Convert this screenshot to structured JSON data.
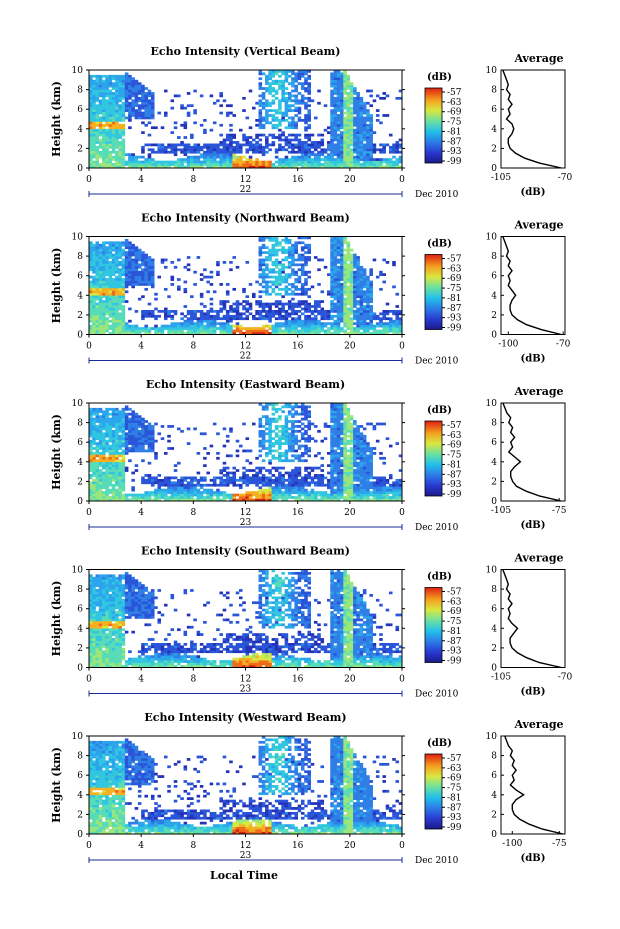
{
  "figure": {
    "xlabel": "Local Time",
    "day_suffix": "Dec 2010",
    "ylabel": "Height (km)",
    "cbar_label": "(dB)",
    "avg_title": "Average",
    "avg_xlabel": "(dB)"
  },
  "chart_data": [
    {
      "type": "heatmap",
      "title": "Echo Intensity (Vertical Beam)",
      "xlabel": "Local Time",
      "ylabel": "Height (km)",
      "x_ticks": [
        "0",
        "4",
        "8",
        "12",
        "16",
        "20",
        "0"
      ],
      "date_label": "22",
      "y_ticks": [
        "0",
        "2",
        "4",
        "6",
        "8",
        "10"
      ],
      "xlim": [
        0,
        24
      ],
      "ylim": [
        0,
        10
      ],
      "colorbar": {
        "label": "(dB)",
        "ticks": [
          "-57",
          "-63",
          "-69",
          "-75",
          "-81",
          "-87",
          "-93",
          "-99"
        ]
      },
      "average_profile": {
        "title": "Average",
        "xlabel": "(dB)",
        "x_ticks": [
          "-105",
          "-70"
        ],
        "xlim": [
          -105,
          -70
        ],
        "height": [
          0,
          0.5,
          1,
          1.5,
          2,
          2.5,
          3,
          3.5,
          4,
          4.5,
          5,
          5.5,
          6,
          6.5,
          7,
          7.5,
          8,
          8.5,
          9,
          9.5,
          10
        ],
        "value": [
          -72,
          -84,
          -92,
          -97,
          -100,
          -101,
          -101,
          -99,
          -98,
          -99,
          -102,
          -100,
          -101,
          -99,
          -101,
          -100,
          -102,
          -101,
          -102,
          -103,
          -104
        ]
      }
    },
    {
      "type": "heatmap",
      "title": "Echo Intensity (Northward Beam)",
      "xlabel": "Local Time",
      "ylabel": "Height (km)",
      "x_ticks": [
        "0",
        "4",
        "8",
        "12",
        "16",
        "20",
        "0"
      ],
      "date_label": "22",
      "y_ticks": [
        "0",
        "2",
        "4",
        "6",
        "8",
        "10"
      ],
      "xlim": [
        0,
        24
      ],
      "ylim": [
        0,
        10
      ],
      "colorbar": {
        "label": "(dB)",
        "ticks": [
          "-57",
          "-63",
          "-69",
          "-75",
          "-81",
          "-87",
          "-93",
          "-99"
        ]
      },
      "average_profile": {
        "title": "Average",
        "xlabel": "(dB)",
        "x_ticks": [
          "-100",
          "-70"
        ],
        "xlim": [
          -104,
          -69
        ],
        "height": [
          0,
          0.5,
          1,
          1.5,
          2,
          2.5,
          3,
          3.5,
          4,
          4.5,
          5,
          5.5,
          6,
          6.5,
          7,
          7.5,
          8,
          8.5,
          9,
          9.5,
          10
        ],
        "value": [
          -71,
          -82,
          -90,
          -95,
          -98,
          -99,
          -99,
          -98,
          -96,
          -98,
          -100,
          -99,
          -100,
          -98,
          -100,
          -99,
          -101,
          -100,
          -101,
          -102,
          -103
        ]
      }
    },
    {
      "type": "heatmap",
      "title": "Echo Intensity (Eastward Beam)",
      "xlabel": "Local Time",
      "ylabel": "Height (km)",
      "x_ticks": [
        "0",
        "4",
        "8",
        "12",
        "16",
        "20",
        "0"
      ],
      "date_label": "23",
      "y_ticks": [
        "0",
        "2",
        "4",
        "6",
        "8",
        "10"
      ],
      "xlim": [
        0,
        24
      ],
      "ylim": [
        0,
        10
      ],
      "colorbar": {
        "label": "(dB)",
        "ticks": [
          "-57",
          "-63",
          "-69",
          "-75",
          "-81",
          "-87",
          "-93",
          "-99"
        ]
      },
      "average_profile": {
        "title": "Average",
        "xlabel": "(dB)",
        "x_ticks": [
          "-105",
          "-75"
        ],
        "xlim": [
          -105,
          -72
        ],
        "height": [
          0,
          0.5,
          1,
          1.5,
          2,
          2.5,
          3,
          3.5,
          4,
          4.5,
          5,
          5.5,
          6,
          6.5,
          7,
          7.5,
          8,
          8.5,
          9,
          9.5,
          10
        ],
        "value": [
          -74,
          -85,
          -92,
          -97,
          -99,
          -100,
          -100,
          -98,
          -95,
          -98,
          -101,
          -99,
          -100,
          -98,
          -100,
          -99,
          -101,
          -100,
          -102,
          -103,
          -104
        ]
      }
    },
    {
      "type": "heatmap",
      "title": "Echo Intensity (Southward Beam)",
      "xlabel": "Local Time",
      "ylabel": "Height (km)",
      "x_ticks": [
        "0",
        "4",
        "8",
        "12",
        "16",
        "20",
        "0"
      ],
      "date_label": "23",
      "y_ticks": [
        "0",
        "2",
        "4",
        "6",
        "8",
        "10"
      ],
      "xlim": [
        0,
        24
      ],
      "ylim": [
        0,
        10
      ],
      "colorbar": {
        "label": "(dB)",
        "ticks": [
          "-57",
          "-63",
          "-69",
          "-75",
          "-81",
          "-87",
          "-93",
          "-99"
        ]
      },
      "average_profile": {
        "title": "Average",
        "xlabel": "(dB)",
        "x_ticks": [
          "-105",
          "-70"
        ],
        "xlim": [
          -105,
          -70
        ],
        "height": [
          0,
          0.5,
          1,
          1.5,
          2,
          2.5,
          3,
          3.5,
          4,
          4.5,
          5,
          5.5,
          6,
          6.5,
          7,
          7.5,
          8,
          8.5,
          9,
          9.5,
          10
        ],
        "value": [
          -72,
          -84,
          -91,
          -96,
          -99,
          -100,
          -100,
          -98,
          -96,
          -99,
          -101,
          -100,
          -101,
          -99,
          -101,
          -100,
          -102,
          -101,
          -102,
          -103,
          -104
        ]
      }
    },
    {
      "type": "heatmap",
      "title": "Echo Intensity (Westward Beam)",
      "xlabel": "Local Time",
      "ylabel": "Height (km)",
      "x_ticks": [
        "0",
        "4",
        "8",
        "12",
        "16",
        "20",
        "0"
      ],
      "date_label": "23",
      "y_ticks": [
        "0",
        "2",
        "4",
        "6",
        "8",
        "10"
      ],
      "xlim": [
        0,
        24
      ],
      "ylim": [
        0,
        10
      ],
      "colorbar": {
        "label": "(dB)",
        "ticks": [
          "-57",
          "-63",
          "-69",
          "-75",
          "-81",
          "-87",
          "-93",
          "-99"
        ]
      },
      "average_profile": {
        "title": "Average",
        "xlabel": "(dB)",
        "x_ticks": [
          "-100",
          "-75"
        ],
        "xlim": [
          -106,
          -72
        ],
        "height": [
          0,
          0.5,
          1,
          1.5,
          2,
          2.5,
          3,
          3.5,
          4,
          4.5,
          5,
          5.5,
          6,
          6.5,
          7,
          7.5,
          8,
          8.5,
          9,
          9.5,
          10
        ],
        "value": [
          -73,
          -84,
          -91,
          -96,
          -99,
          -100,
          -100,
          -98,
          -94,
          -98,
          -101,
          -99,
          -100,
          -98,
          -100,
          -99,
          -101,
          -100,
          -102,
          -103,
          -104
        ]
      }
    }
  ]
}
